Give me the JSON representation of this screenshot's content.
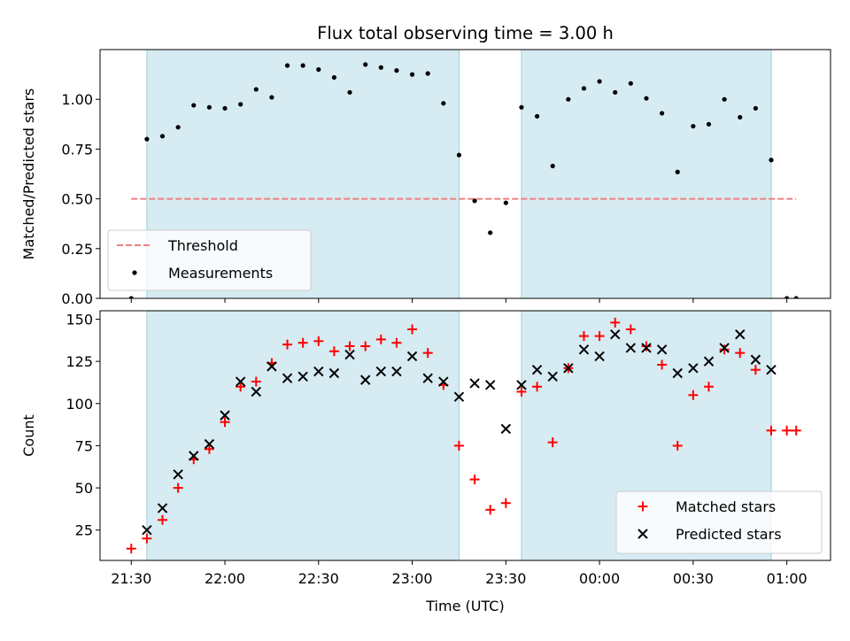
{
  "chart_data": [
    {
      "type": "scatter",
      "title": "Flux total observing time = 3.00 h",
      "xlabel": "",
      "ylabel": "Matched/Predicted stars",
      "xlim": [
        "21:20",
        "01:14"
      ],
      "ylim": [
        0,
        1.25
      ],
      "yticks": [
        0.0,
        0.25,
        0.5,
        0.75,
        1.0
      ],
      "ytick_labels": [
        "0.00",
        "0.25",
        "0.50",
        "0.75",
        "1.00"
      ],
      "shaded_intervals": [
        [
          "21:35",
          "23:15"
        ],
        [
          "23:35",
          "00:55"
        ]
      ],
      "threshold": {
        "name": "Threshold",
        "value": 0.5,
        "x_start": "21:30",
        "x_end": "01:03",
        "color": "#f08080",
        "style": "dashed"
      },
      "legend": {
        "placement": "lower-left",
        "entries": [
          "Threshold",
          "Measurements"
        ]
      },
      "series": [
        {
          "name": "Measurements",
          "color": "#000000",
          "marker": "dot",
          "x": [
            "21:30",
            "21:35",
            "21:40",
            "21:45",
            "21:50",
            "21:55",
            "22:00",
            "22:05",
            "22:10",
            "22:15",
            "22:20",
            "22:25",
            "22:30",
            "22:35",
            "22:40",
            "22:45",
            "22:50",
            "22:55",
            "23:00",
            "23:05",
            "23:10",
            "23:15",
            "23:20",
            "23:25",
            "23:30",
            "23:35",
            "23:40",
            "23:45",
            "23:50",
            "23:55",
            "00:00",
            "00:05",
            "00:10",
            "00:15",
            "00:20",
            "00:25",
            "00:30",
            "00:35",
            "00:40",
            "00:45",
            "00:50",
            "00:55",
            "01:00",
            "01:03"
          ],
          "y": [
            0.0,
            0.8,
            0.815,
            0.86,
            0.97,
            0.96,
            0.955,
            0.975,
            1.05,
            1.01,
            1.17,
            1.17,
            1.15,
            1.11,
            1.035,
            1.175,
            1.16,
            1.145,
            1.125,
            1.13,
            0.98,
            0.72,
            0.49,
            0.33,
            0.48,
            0.96,
            0.915,
            0.665,
            1.0,
            1.055,
            1.09,
            1.035,
            1.08,
            1.005,
            0.93,
            0.635,
            0.865,
            0.875,
            1.0,
            0.91,
            0.955,
            0.695,
            0.0,
            0.0
          ]
        }
      ]
    },
    {
      "type": "scatter",
      "title": "",
      "xlabel": "Time (UTC)",
      "ylabel": "Count",
      "xlim": [
        "21:20",
        "01:14"
      ],
      "ylim": [
        7,
        155
      ],
      "xticks": [
        "21:30",
        "22:00",
        "22:30",
        "23:00",
        "23:30",
        "00:00",
        "00:30",
        "01:00"
      ],
      "yticks": [
        25,
        50,
        75,
        100,
        125,
        150
      ],
      "shaded_intervals": [
        [
          "21:35",
          "23:15"
        ],
        [
          "23:35",
          "00:55"
        ]
      ],
      "legend": {
        "placement": "lower-right",
        "entries": [
          "Matched stars",
          "Predicted stars"
        ]
      },
      "series": [
        {
          "name": "Matched stars",
          "color": "#ff0000",
          "marker": "plus",
          "x": [
            "21:30",
            "21:35",
            "21:40",
            "21:45",
            "21:50",
            "21:55",
            "22:00",
            "22:05",
            "22:10",
            "22:15",
            "22:20",
            "22:25",
            "22:30",
            "22:35",
            "22:40",
            "22:45",
            "22:50",
            "22:55",
            "23:00",
            "23:05",
            "23:10",
            "23:15",
            "23:20",
            "23:25",
            "23:30",
            "23:35",
            "23:40",
            "23:45",
            "23:50",
            "23:55",
            "00:00",
            "00:05",
            "00:10",
            "00:15",
            "00:20",
            "00:25",
            "00:30",
            "00:35",
            "00:40",
            "00:45",
            "00:50",
            "00:55",
            "01:00",
            "01:03"
          ],
          "y": [
            14,
            20,
            31,
            50,
            67,
            73,
            89,
            110,
            113,
            124,
            135,
            136,
            137,
            131,
            134,
            134,
            138,
            136,
            144,
            130,
            111,
            75,
            55,
            37,
            41,
            107,
            110,
            77,
            121,
            140,
            140,
            148,
            144,
            134,
            123,
            75,
            105,
            110,
            132,
            130,
            120,
            84,
            84,
            84
          ]
        },
        {
          "name": "Predicted stars",
          "color": "#000000",
          "marker": "x",
          "x": [
            "21:35",
            "21:40",
            "21:45",
            "21:50",
            "21:55",
            "22:00",
            "22:05",
            "22:10",
            "22:15",
            "22:20",
            "22:25",
            "22:30",
            "22:35",
            "22:40",
            "22:45",
            "22:50",
            "22:55",
            "23:00",
            "23:05",
            "23:10",
            "23:15",
            "23:20",
            "23:25",
            "23:30",
            "23:35",
            "23:40",
            "23:45",
            "23:50",
            "23:55",
            "00:00",
            "00:05",
            "00:10",
            "00:15",
            "00:20",
            "00:25",
            "00:30",
            "00:35",
            "00:40",
            "00:45",
            "00:50",
            "00:55"
          ],
          "y": [
            25,
            38,
            58,
            69,
            76,
            93,
            113,
            107,
            122,
            115,
            116,
            119,
            118,
            129,
            114,
            119,
            119,
            128,
            115,
            113,
            104,
            112,
            111,
            85,
            111,
            120,
            116,
            121,
            132,
            128,
            141,
            133,
            133,
            132,
            118,
            121,
            125,
            133,
            141,
            126,
            120
          ]
        }
      ]
    }
  ]
}
